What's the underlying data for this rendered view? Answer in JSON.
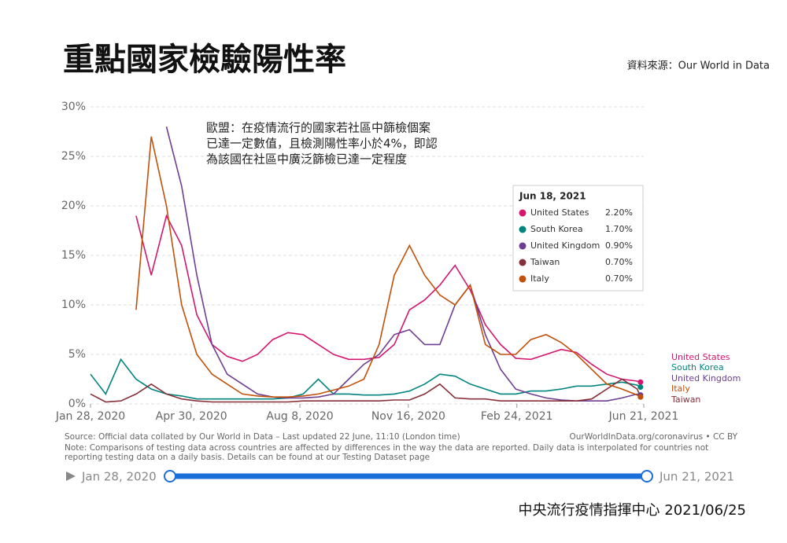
{
  "header": {
    "title": "重點國家檢驗陽性率",
    "source": "資料來源：Our World in Data"
  },
  "chart_data": {
    "type": "line",
    "annotation": [
      "歐盟：在疫情流行的國家若社區中篩檢個案",
      "已達一定數值，且檢測陽性率小於4%，即認",
      "為該國在社區中廣泛篩檢已達一定程度"
    ],
    "x": [
      "2020-01-28",
      "2020-02-11",
      "2020-02-25",
      "2020-03-10",
      "2020-03-24",
      "2020-04-07",
      "2020-04-21",
      "2020-05-05",
      "2020-05-19",
      "2020-06-02",
      "2020-06-16",
      "2020-06-30",
      "2020-07-14",
      "2020-07-28",
      "2020-08-11",
      "2020-08-25",
      "2020-09-08",
      "2020-09-22",
      "2020-10-06",
      "2020-10-20",
      "2020-11-03",
      "2020-11-17",
      "2020-12-01",
      "2020-12-15",
      "2020-12-29",
      "2021-01-12",
      "2021-01-26",
      "2021-02-09",
      "2021-02-23",
      "2021-03-09",
      "2021-03-23",
      "2021-04-06",
      "2021-04-20",
      "2021-05-04",
      "2021-05-18",
      "2021-06-01",
      "2021-06-15",
      "2021-06-18"
    ],
    "series": [
      {
        "name": "United States",
        "color": "#d4166e",
        "values": [
          null,
          null,
          null,
          19,
          13,
          19,
          16,
          9,
          6,
          4.8,
          4.3,
          5,
          6.5,
          7.2,
          7,
          6,
          5,
          4.5,
          4.5,
          4.7,
          6,
          9.5,
          10.5,
          12,
          14,
          11.5,
          8,
          6,
          4.6,
          4.5,
          5,
          5.5,
          5.2,
          4,
          3,
          2.5,
          2.3,
          2.2
        ]
      },
      {
        "name": "South Korea",
        "color": "#00847e",
        "values": [
          3,
          1,
          4.5,
          2.5,
          1.5,
          1,
          0.8,
          0.5,
          0.5,
          0.5,
          0.5,
          0.5,
          0.5,
          0.6,
          1,
          2.5,
          1,
          1,
          0.9,
          0.9,
          1,
          1.3,
          2,
          3,
          2.8,
          2,
          1.5,
          1,
          1,
          1.3,
          1.3,
          1.5,
          1.8,
          1.8,
          2,
          2.2,
          1.9,
          1.7
        ]
      },
      {
        "name": "United Kingdom",
        "color": "#6d3e91",
        "values": [
          null,
          null,
          null,
          null,
          null,
          28,
          22,
          13,
          6,
          3,
          2,
          1,
          0.7,
          0.6,
          0.6,
          0.7,
          1,
          2.5,
          4,
          5,
          7,
          7.5,
          6,
          6,
          10,
          12,
          7,
          3.5,
          1.5,
          1,
          0.6,
          0.4,
          0.3,
          0.3,
          0.3,
          0.6,
          1,
          0.9
        ]
      },
      {
        "name": "Taiwan",
        "color": "#883039",
        "values": [
          1,
          0.2,
          0.3,
          1,
          2,
          1,
          0.5,
          0.3,
          0.2,
          0.2,
          0.2,
          0.2,
          0.2,
          0.2,
          0.3,
          0.3,
          0.3,
          0.3,
          0.3,
          0.3,
          0.4,
          0.4,
          1,
          2,
          0.6,
          0.5,
          0.5,
          0.3,
          0.3,
          0.3,
          0.3,
          0.3,
          0.3,
          0.5,
          1.5,
          2.5,
          1.5,
          0.7
        ]
      },
      {
        "name": "Italy",
        "color": "#c15008",
        "values": [
          null,
          null,
          null,
          9.5,
          27,
          20,
          10,
          5,
          3,
          2,
          1,
          0.8,
          0.7,
          0.7,
          0.8,
          1,
          1.4,
          1.8,
          2.5,
          6,
          13,
          16,
          13,
          11,
          10,
          12,
          6,
          5,
          5,
          6.5,
          7,
          6.2,
          5,
          3.5,
          2,
          1.5,
          0.9,
          0.7
        ]
      }
    ],
    "xlim": [
      "2020-01-28",
      "2021-06-21"
    ],
    "xticks": [
      {
        "value": "2020-01-28",
        "label": "Jan 28, 2020"
      },
      {
        "value": "2020-04-30",
        "label": "Apr 30, 2020"
      },
      {
        "value": "2020-08-08",
        "label": "Aug 8, 2020"
      },
      {
        "value": "2020-11-16",
        "label": "Nov 16, 2020"
      },
      {
        "value": "2021-02-24",
        "label": "Feb 24, 2021"
      },
      {
        "value": "2021-06-21",
        "label": "Jun 21, 2021"
      }
    ],
    "ylim": [
      0,
      30
    ],
    "yticks": [
      {
        "value": 0,
        "label": "0%"
      },
      {
        "value": 5,
        "label": "5%"
      },
      {
        "value": 10,
        "label": "10%"
      },
      {
        "value": 15,
        "label": "15%"
      },
      {
        "value": 20,
        "label": "20%"
      },
      {
        "value": 25,
        "label": "25%"
      },
      {
        "value": 30,
        "label": "30%"
      }
    ],
    "grid": true,
    "tooltip": {
      "date": "Jun 18, 2021",
      "rows": [
        {
          "value": 2.2,
          "label": "2.20%"
        },
        {
          "value": 1.7,
          "label": "1.70%"
        },
        {
          "value": 0.9,
          "label": "0.90%"
        },
        {
          "value": 0.7,
          "label": "0.70%"
        },
        {
          "value": 0.7,
          "label": "0.70%"
        }
      ]
    },
    "source_note": "Source: Official data collated by Our World in Data – Last updated 22 June, 11:10 (London time)",
    "license": "OurWorldInData.org/coronavirus • CC BY",
    "note": "Note: Comparisons of testing data across countries are affected by differences in the way the data are reported. Daily data is interpolated for countries not reporting testing data on a daily basis. Details can be found at our Testing Dataset page",
    "slider": {
      "start": "Jan 28, 2020",
      "end": "Jun 21, 2021"
    }
  },
  "footer": "中央流行疫情指揮中心 2021/06/25"
}
